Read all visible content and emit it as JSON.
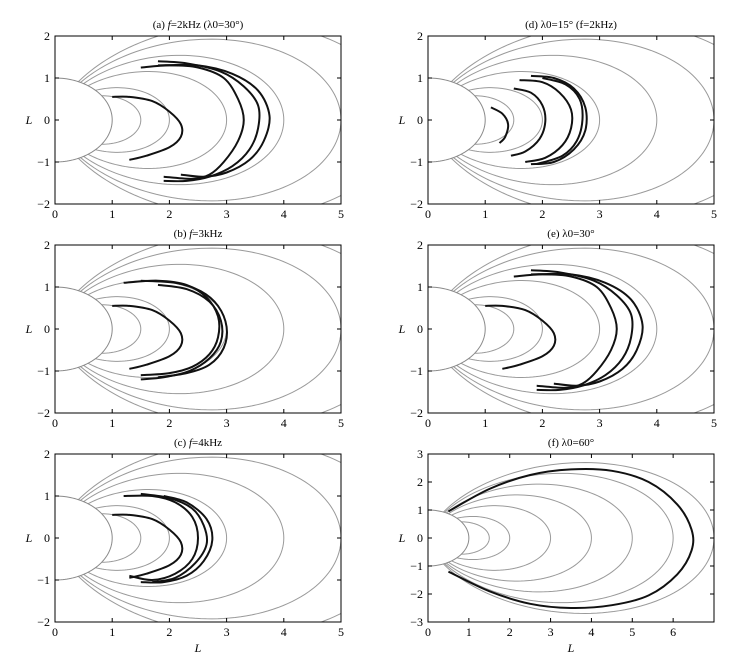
{
  "chart_data": [
    {
      "type": "line",
      "title": "(a) f=2kHz (λ0=30°)",
      "title_parts": {
        "prefix": "(a) ",
        "var": "f",
        "rest": "=2kHz (λ0=30°)"
      },
      "xlabel": "",
      "ylabel": "L",
      "xlim": [
        0,
        5
      ],
      "ylim": [
        -2,
        2
      ],
      "x_ticks": [
        0,
        1,
        2,
        3,
        4,
        5
      ],
      "y_ticks": [
        -2,
        -1,
        0,
        1,
        2
      ],
      "grid": false,
      "field_line_L": [
        1.5,
        2,
        3,
        4,
        5,
        6
      ],
      "series": [
        {
          "values": [
            [
              1.0,
              0.55
            ],
            [
              1.3,
              0.55
            ],
            [
              1.7,
              0.45
            ],
            [
              2.0,
              0.2
            ],
            [
              2.2,
              -0.1
            ],
            [
              2.2,
              -0.4
            ],
            [
              2.0,
              -0.65
            ],
            [
              1.6,
              -0.85
            ],
            [
              1.3,
              -0.95
            ]
          ]
        },
        {
          "values": [
            [
              1.5,
              1.25
            ],
            [
              2.0,
              1.3
            ],
            [
              2.5,
              1.25
            ],
            [
              2.95,
              1.0
            ],
            [
              3.2,
              0.5
            ],
            [
              3.3,
              0.0
            ],
            [
              3.2,
              -0.5
            ],
            [
              2.95,
              -1.0
            ],
            [
              2.7,
              -1.3
            ],
            [
              2.4,
              -1.4
            ],
            [
              1.9,
              -1.35
            ]
          ]
        },
        {
          "values": [
            [
              1.8,
              1.4
            ],
            [
              2.3,
              1.35
            ],
            [
              2.9,
              1.15
            ],
            [
              3.3,
              0.8
            ],
            [
              3.55,
              0.35
            ],
            [
              3.55,
              -0.2
            ],
            [
              3.4,
              -0.7
            ],
            [
              3.1,
              -1.1
            ],
            [
              2.7,
              -1.35
            ],
            [
              2.3,
              -1.45
            ],
            [
              1.9,
              -1.45
            ]
          ]
        },
        {
          "values": [
            [
              1.8,
              1.3
            ],
            [
              2.5,
              1.3
            ],
            [
              3.1,
              1.1
            ],
            [
              3.55,
              0.7
            ],
            [
              3.75,
              0.1
            ],
            [
              3.65,
              -0.5
            ],
            [
              3.4,
              -0.95
            ],
            [
              3.0,
              -1.25
            ],
            [
              2.6,
              -1.35
            ],
            [
              2.2,
              -1.3
            ]
          ]
        }
      ]
    },
    {
      "type": "line",
      "title": "(b) f=3kHz",
      "title_parts": {
        "prefix": "(b) ",
        "var": "f",
        "rest": "=3kHz"
      },
      "xlabel": "",
      "ylabel": "L",
      "xlim": [
        0,
        5
      ],
      "ylim": [
        -2,
        2
      ],
      "x_ticks": [
        0,
        1,
        2,
        3,
        4,
        5
      ],
      "y_ticks": [
        -2,
        -1,
        0,
        1,
        2
      ],
      "grid": false,
      "field_line_L": [
        1.5,
        2,
        3,
        4,
        5,
        6
      ],
      "series": [
        {
          "values": [
            [
              1.0,
              0.55
            ],
            [
              1.3,
              0.55
            ],
            [
              1.7,
              0.45
            ],
            [
              2.0,
              0.2
            ],
            [
              2.2,
              -0.1
            ],
            [
              2.2,
              -0.4
            ],
            [
              2.0,
              -0.65
            ],
            [
              1.6,
              -0.85
            ],
            [
              1.3,
              -0.95
            ]
          ]
        },
        {
          "values": [
            [
              1.2,
              1.1
            ],
            [
              1.8,
              1.15
            ],
            [
              2.3,
              1.05
            ],
            [
              2.65,
              0.75
            ],
            [
              2.85,
              0.3
            ],
            [
              2.85,
              -0.2
            ],
            [
              2.7,
              -0.6
            ],
            [
              2.4,
              -0.9
            ],
            [
              2.0,
              -1.05
            ],
            [
              1.5,
              -1.1
            ]
          ]
        },
        {
          "values": [
            [
              1.5,
              1.15
            ],
            [
              2.1,
              1.1
            ],
            [
              2.55,
              0.9
            ],
            [
              2.85,
              0.55
            ],
            [
              3.0,
              0.05
            ],
            [
              2.95,
              -0.45
            ],
            [
              2.7,
              -0.85
            ],
            [
              2.3,
              -1.05
            ],
            [
              1.8,
              -1.15
            ]
          ]
        },
        {
          "values": [
            [
              1.8,
              1.05
            ],
            [
              2.3,
              0.95
            ],
            [
              2.7,
              0.65
            ],
            [
              2.9,
              0.2
            ],
            [
              2.9,
              -0.3
            ],
            [
              2.7,
              -0.7
            ],
            [
              2.35,
              -1.0
            ],
            [
              1.9,
              -1.15
            ],
            [
              1.5,
              -1.2
            ]
          ]
        }
      ]
    },
    {
      "type": "line",
      "title": "(c) f=4kHz",
      "title_parts": {
        "prefix": "(c) ",
        "var": "f",
        "rest": "=4kHz"
      },
      "xlabel": "L",
      "ylabel": "L",
      "xlim": [
        0,
        5
      ],
      "ylim": [
        -2,
        2
      ],
      "x_ticks": [
        0,
        1,
        2,
        3,
        4,
        5
      ],
      "y_ticks": [
        -2,
        -1,
        0,
        1,
        2
      ],
      "grid": false,
      "field_line_L": [
        1.5,
        2,
        3,
        4,
        5,
        6
      ],
      "series": [
        {
          "values": [
            [
              1.0,
              0.55
            ],
            [
              1.3,
              0.55
            ],
            [
              1.7,
              0.45
            ],
            [
              2.0,
              0.2
            ],
            [
              2.2,
              -0.1
            ],
            [
              2.2,
              -0.4
            ],
            [
              2.0,
              -0.65
            ],
            [
              1.6,
              -0.85
            ],
            [
              1.3,
              -0.95
            ]
          ]
        },
        {
          "values": [
            [
              1.2,
              1.0
            ],
            [
              1.7,
              1.0
            ],
            [
              2.1,
              0.85
            ],
            [
              2.4,
              0.5
            ],
            [
              2.5,
              0.0
            ],
            [
              2.4,
              -0.5
            ],
            [
              2.1,
              -0.85
            ],
            [
              1.7,
              -1.0
            ],
            [
              1.3,
              -0.9
            ]
          ]
        },
        {
          "values": [
            [
              1.5,
              1.05
            ],
            [
              2.0,
              0.95
            ],
            [
              2.4,
              0.7
            ],
            [
              2.6,
              0.3
            ],
            [
              2.65,
              -0.15
            ],
            [
              2.45,
              -0.6
            ],
            [
              2.1,
              -0.95
            ],
            [
              1.7,
              -1.05
            ]
          ]
        },
        {
          "values": [
            [
              1.9,
              1.0
            ],
            [
              2.3,
              0.85
            ],
            [
              2.65,
              0.45
            ],
            [
              2.75,
              -0.05
            ],
            [
              2.6,
              -0.55
            ],
            [
              2.3,
              -0.9
            ],
            [
              1.9,
              -1.05
            ],
            [
              1.5,
              -1.05
            ]
          ]
        }
      ]
    },
    {
      "type": "line",
      "title": "(d) λ0=15° (f=2kHz)",
      "title_parts": {
        "prefix": "(d) ",
        "var": "",
        "rest": "λ0=15° (f=2kHz)"
      },
      "xlabel": "",
      "ylabel": "L",
      "xlim": [
        0,
        5
      ],
      "ylim": [
        -2,
        2
      ],
      "x_ticks": [
        0,
        1,
        2,
        3,
        4,
        5
      ],
      "y_ticks": [
        -2,
        -1,
        0,
        1,
        2
      ],
      "grid": false,
      "field_line_L": [
        1.5,
        2,
        3,
        4,
        5,
        6
      ],
      "series": [
        {
          "values": [
            [
              1.1,
              0.3
            ],
            [
              1.3,
              0.15
            ],
            [
              1.4,
              -0.1
            ],
            [
              1.35,
              -0.4
            ],
            [
              1.25,
              -0.55
            ]
          ]
        },
        {
          "values": [
            [
              1.5,
              0.75
            ],
            [
              1.8,
              0.65
            ],
            [
              2.0,
              0.35
            ],
            [
              2.05,
              -0.05
            ],
            [
              1.95,
              -0.45
            ],
            [
              1.7,
              -0.75
            ],
            [
              1.45,
              -0.85
            ]
          ]
        },
        {
          "values": [
            [
              1.6,
              0.95
            ],
            [
              2.0,
              0.9
            ],
            [
              2.3,
              0.65
            ],
            [
              2.5,
              0.25
            ],
            [
              2.5,
              -0.2
            ],
            [
              2.35,
              -0.6
            ],
            [
              2.05,
              -0.9
            ],
            [
              1.7,
              -1.0
            ]
          ]
        },
        {
          "values": [
            [
              1.8,
              1.05
            ],
            [
              2.2,
              1.0
            ],
            [
              2.55,
              0.75
            ],
            [
              2.75,
              0.3
            ],
            [
              2.75,
              -0.25
            ],
            [
              2.55,
              -0.7
            ],
            [
              2.2,
              -1.0
            ],
            [
              1.8,
              -1.05
            ]
          ]
        },
        {
          "values": [
            [
              2.0,
              1.0
            ],
            [
              2.4,
              0.85
            ],
            [
              2.65,
              0.5
            ],
            [
              2.7,
              0.0
            ],
            [
              2.6,
              -0.5
            ],
            [
              2.35,
              -0.85
            ],
            [
              1.9,
              -1.05
            ]
          ]
        }
      ]
    },
    {
      "type": "line",
      "title": "(e) λ0=30°",
      "title_parts": {
        "prefix": "(e) ",
        "var": "",
        "rest": "λ0=30°"
      },
      "xlabel": "",
      "ylabel": "L",
      "xlim": [
        0,
        5
      ],
      "ylim": [
        -2,
        2
      ],
      "x_ticks": [
        0,
        1,
        2,
        3,
        4,
        5
      ],
      "y_ticks": [
        -2,
        -1,
        0,
        1,
        2
      ],
      "grid": false,
      "field_line_L": [
        1.5,
        2,
        3,
        4,
        5,
        6
      ],
      "series": [
        {
          "values": [
            [
              1.0,
              0.55
            ],
            [
              1.3,
              0.55
            ],
            [
              1.7,
              0.45
            ],
            [
              2.0,
              0.2
            ],
            [
              2.2,
              -0.1
            ],
            [
              2.2,
              -0.4
            ],
            [
              2.0,
              -0.65
            ],
            [
              1.6,
              -0.85
            ],
            [
              1.3,
              -0.95
            ]
          ]
        },
        {
          "values": [
            [
              1.5,
              1.25
            ],
            [
              2.0,
              1.3
            ],
            [
              2.5,
              1.25
            ],
            [
              2.95,
              1.0
            ],
            [
              3.2,
              0.5
            ],
            [
              3.3,
              0.0
            ],
            [
              3.2,
              -0.5
            ],
            [
              2.95,
              -1.0
            ],
            [
              2.7,
              -1.3
            ],
            [
              2.4,
              -1.4
            ],
            [
              1.9,
              -1.35
            ]
          ]
        },
        {
          "values": [
            [
              1.8,
              1.4
            ],
            [
              2.3,
              1.35
            ],
            [
              2.9,
              1.15
            ],
            [
              3.3,
              0.8
            ],
            [
              3.55,
              0.35
            ],
            [
              3.55,
              -0.2
            ],
            [
              3.4,
              -0.7
            ],
            [
              3.1,
              -1.1
            ],
            [
              2.7,
              -1.35
            ],
            [
              2.3,
              -1.45
            ],
            [
              1.9,
              -1.45
            ]
          ]
        },
        {
          "values": [
            [
              1.8,
              1.3
            ],
            [
              2.5,
              1.3
            ],
            [
              3.1,
              1.1
            ],
            [
              3.55,
              0.7
            ],
            [
              3.75,
              0.1
            ],
            [
              3.65,
              -0.5
            ],
            [
              3.4,
              -0.95
            ],
            [
              3.0,
              -1.25
            ],
            [
              2.6,
              -1.35
            ],
            [
              2.2,
              -1.3
            ]
          ]
        }
      ]
    },
    {
      "type": "line",
      "title": "(f) λ0=60°",
      "title_parts": {
        "prefix": "(f) ",
        "var": "",
        "rest": "λ0=60°"
      },
      "xlabel": "L",
      "ylabel": "L",
      "xlim": [
        0,
        7
      ],
      "ylim": [
        -3,
        3
      ],
      "x_ticks": [
        0,
        1,
        2,
        3,
        4,
        5,
        6
      ],
      "y_ticks": [
        -3,
        -2,
        -1,
        0,
        1,
        2,
        3
      ],
      "grid": false,
      "field_line_L": [
        1.5,
        2,
        3,
        4,
        5,
        6,
        7
      ],
      "series": [
        {
          "values": [
            [
              0.5,
              0.95
            ],
            [
              1.5,
              1.75
            ],
            [
              2.5,
              2.25
            ],
            [
              3.5,
              2.45
            ],
            [
              4.5,
              2.4
            ],
            [
              5.4,
              2.0
            ],
            [
              6.1,
              1.2
            ],
            [
              6.45,
              0.3
            ],
            [
              6.45,
              -0.45
            ],
            [
              6.1,
              -1.3
            ],
            [
              5.4,
              -2.05
            ],
            [
              4.5,
              -2.4
            ],
            [
              3.5,
              -2.5
            ],
            [
              2.5,
              -2.35
            ],
            [
              1.5,
              -1.9
            ],
            [
              0.5,
              -1.2
            ]
          ]
        }
      ]
    }
  ]
}
